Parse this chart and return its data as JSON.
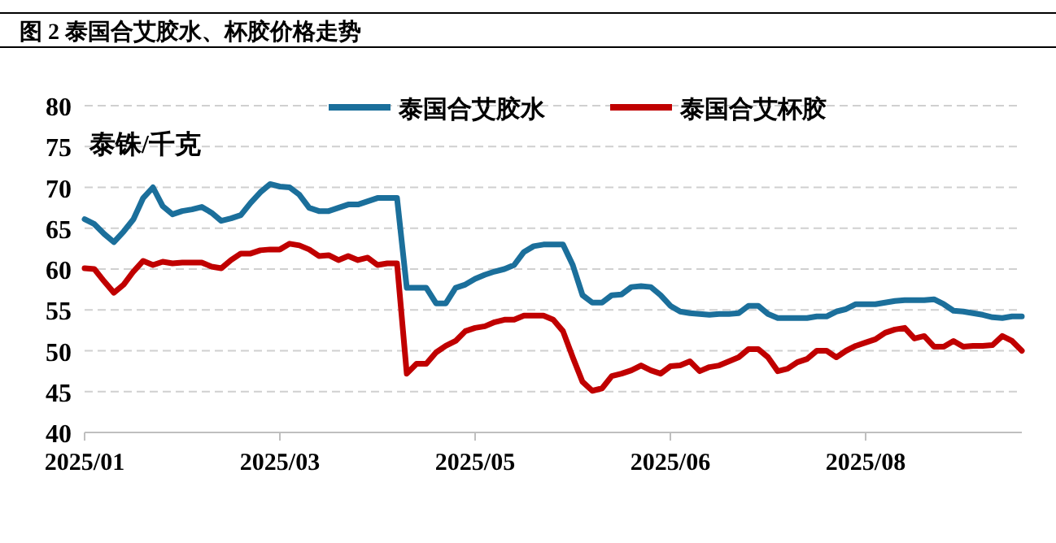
{
  "chart_data": {
    "type": "line",
    "title": "图 2 泰国合艾胶水、杯胶价格走势",
    "ylabel": "泰铢/千克",
    "categories": [
      "2025/01",
      null,
      null,
      null,
      null,
      null,
      null,
      null,
      null,
      null,
      null,
      null,
      null,
      null,
      null,
      null,
      null,
      null,
      null,
      null,
      "2025/03",
      null,
      null,
      null,
      null,
      null,
      null,
      null,
      null,
      null,
      null,
      null,
      null,
      null,
      null,
      null,
      null,
      null,
      null,
      null,
      "2025/05",
      null,
      null,
      null,
      null,
      null,
      null,
      null,
      null,
      null,
      null,
      null,
      null,
      null,
      null,
      null,
      null,
      null,
      null,
      null,
      "2025/06",
      null,
      null,
      null,
      null,
      null,
      null,
      null,
      null,
      null,
      null,
      null,
      null,
      null,
      null,
      null,
      null,
      null,
      null,
      null,
      "2025/08",
      null,
      null,
      null,
      null,
      null,
      null,
      null,
      null,
      null,
      null,
      null,
      null,
      null,
      null,
      null,
      null
    ],
    "series": [
      {
        "name": "泰国合艾胶水",
        "color": "#1b6f9b",
        "values": [
          66.1,
          65.5,
          64.3,
          63.3,
          64.6,
          66.1,
          68.7,
          70.0,
          67.7,
          66.7,
          67.1,
          67.3,
          67.6,
          66.9,
          65.9,
          66.2,
          66.6,
          68.1,
          69.4,
          70.4,
          70.1,
          70.0,
          69.1,
          67.5,
          67.1,
          67.1,
          67.5,
          67.9,
          67.9,
          68.3,
          68.7,
          68.7,
          68.7,
          57.7,
          57.7,
          57.7,
          55.8,
          55.8,
          57.7,
          58.1,
          58.8,
          59.3,
          59.7,
          60.0,
          60.5,
          62.1,
          62.8,
          63.0,
          63.0,
          63.0,
          60.5,
          56.8,
          55.9,
          55.9,
          56.8,
          56.9,
          57.8,
          57.9,
          57.8,
          56.8,
          55.5,
          54.8,
          54.6,
          54.5,
          54.4,
          54.5,
          54.5,
          54.6,
          55.5,
          55.5,
          54.5,
          54.0,
          54.0,
          54.0,
          54.0,
          54.2,
          54.2,
          54.8,
          55.1,
          55.7,
          55.7,
          55.7,
          55.9,
          56.1,
          56.2,
          56.2,
          56.2,
          56.3,
          55.7,
          54.9,
          54.8,
          54.6,
          54.4,
          54.1,
          54.0,
          54.2,
          54.2
        ]
      },
      {
        "name": "泰国合艾杯胶",
        "color": "#c00000",
        "values": [
          60.1,
          60.0,
          58.5,
          57.1,
          58.1,
          59.7,
          61.0,
          60.5,
          60.9,
          60.7,
          60.8,
          60.8,
          60.8,
          60.3,
          60.1,
          61.1,
          61.9,
          61.9,
          62.3,
          62.4,
          62.4,
          63.1,
          62.9,
          62.4,
          61.6,
          61.7,
          61.1,
          61.6,
          61.1,
          61.4,
          60.5,
          60.7,
          60.7,
          47.2,
          48.4,
          48.4,
          49.8,
          50.6,
          51.2,
          52.4,
          52.8,
          53.0,
          53.5,
          53.8,
          53.8,
          54.3,
          54.3,
          54.3,
          53.8,
          52.4,
          49.2,
          46.2,
          45.1,
          45.4,
          46.9,
          47.2,
          47.6,
          48.2,
          47.6,
          47.2,
          48.1,
          48.2,
          48.7,
          47.5,
          48.0,
          48.2,
          48.7,
          49.2,
          50.2,
          50.2,
          49.2,
          47.5,
          47.8,
          48.6,
          49.0,
          50.0,
          50.0,
          49.2,
          50.0,
          50.6,
          51.0,
          51.4,
          52.2,
          52.6,
          52.8,
          51.5,
          51.8,
          50.5,
          50.5,
          51.2,
          50.5,
          50.6,
          50.6,
          50.7,
          51.8,
          51.2,
          50.0
        ]
      }
    ],
    "ylim": [
      40,
      80
    ],
    "yticks": [
      40,
      45,
      50,
      55,
      60,
      65,
      70,
      75,
      80
    ],
    "grid": "y",
    "legend": "top"
  }
}
